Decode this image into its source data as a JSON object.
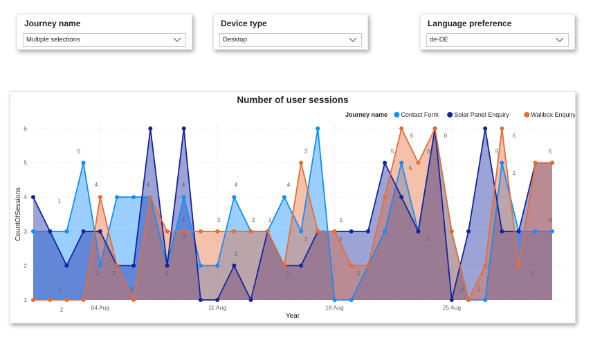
{
  "slicers": {
    "journey": {
      "title": "Journey name",
      "value": "Multiple selections"
    },
    "device": {
      "title": "Device type",
      "value": "Desktop"
    },
    "language": {
      "title": "Language preference",
      "value": "de-DE"
    }
  },
  "colors": {
    "contact": "#118DFF",
    "solar": "#12239E",
    "wallbox": "#E66C37"
  },
  "chart_data": {
    "type": "area",
    "title": "Number of user sessions",
    "xlabel": "Year",
    "ylabel": "CountOfSessions",
    "ylim": [
      1,
      6
    ],
    "yticks": [
      "1",
      "2",
      "3",
      "4",
      "5",
      "6"
    ],
    "xticks": [
      "04 Aug",
      "11 Aug",
      "18 Aug",
      "25 Aug"
    ],
    "x": [
      "31 Jul",
      "01 Aug",
      "02 Aug",
      "03 Aug",
      "04 Aug",
      "05 Aug",
      "06 Aug",
      "07 Aug",
      "08 Aug",
      "09 Aug",
      "10 Aug",
      "11 Aug",
      "12 Aug",
      "13 Aug",
      "14 Aug",
      "15 Aug",
      "16 Aug",
      "17 Aug",
      "18 Aug",
      "19 Aug",
      "20 Aug",
      "21 Aug",
      "22 Aug",
      "23 Aug",
      "24 Aug",
      "25 Aug",
      "26 Aug",
      "27 Aug",
      "28 Aug",
      "29 Aug",
      "30 Aug",
      "31 Aug"
    ],
    "legend_title": "Journey name",
    "legend_position": "top-right",
    "grid": true,
    "series": [
      {
        "name": "Contact Form",
        "values": [
          3,
          3,
          3,
          5,
          2,
          4,
          4,
          4,
          2,
          4,
          2,
          2,
          4,
          3,
          3,
          4,
          3,
          6,
          1,
          1,
          2,
          3,
          5,
          3,
          6,
          3,
          1,
          1,
          5,
          3,
          3,
          3
        ]
      },
      {
        "name": "Solar Panel Enquiry",
        "values": [
          4,
          3,
          2,
          3,
          3,
          2,
          2,
          6,
          2,
          6,
          1,
          1,
          2,
          1,
          3,
          2,
          2,
          3,
          3,
          3,
          3,
          5,
          4,
          3,
          6,
          1,
          3,
          6,
          3,
          3,
          5,
          5
        ]
      },
      {
        "name": "Wallbox Enquiry",
        "values": [
          1,
          1,
          1,
          1,
          4,
          2,
          1,
          4,
          3,
          3,
          3,
          3,
          3,
          3,
          3,
          2,
          5,
          3,
          3,
          2,
          2,
          4,
          6,
          5,
          6,
          3,
          1,
          2,
          6,
          2,
          5,
          5
        ]
      }
    ],
    "data_labels": [
      "1",
      "1",
      "2",
      "5",
      "4",
      "2",
      "2",
      "1",
      "4",
      "4",
      "2",
      "4",
      "3",
      "3",
      "3",
      "4",
      "2",
      "1",
      "3",
      "4",
      "3",
      "2",
      "3",
      "2",
      "5",
      "3",
      "5",
      "6",
      "3",
      "1",
      "5",
      "6",
      "5",
      "3",
      "2",
      "5",
      "3",
      "1",
      "6",
      "1"
    ]
  }
}
